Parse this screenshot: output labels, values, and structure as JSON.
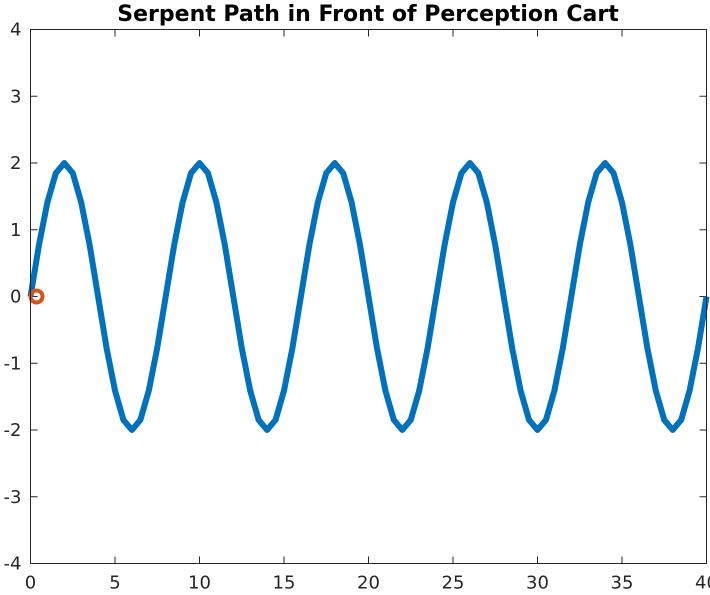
{
  "chart_data": {
    "type": "line",
    "title": "Serpent Path in Front of Perception Cart",
    "xlabel": "",
    "ylabel": "",
    "xlim": [
      0,
      40
    ],
    "ylim": [
      -4,
      4
    ],
    "xticks": [
      0,
      5,
      10,
      15,
      20,
      25,
      30,
      35,
      40
    ],
    "yticks": [
      -4,
      -3,
      -2,
      -1,
      0,
      1,
      2,
      3,
      4
    ],
    "grid": false,
    "colors": {
      "line": "#0072BD",
      "marker": "#D95319",
      "axes": "#262626",
      "title": "#000000"
    },
    "series": [
      {
        "x": [
          0,
          0.5,
          1,
          1.5,
          2,
          2.5,
          3,
          3.5,
          4,
          4.5,
          5,
          5.5,
          6,
          6.5,
          7,
          7.5,
          8,
          8.5,
          9,
          9.5,
          10,
          10.5,
          11,
          11.5,
          12,
          12.5,
          13,
          13.5,
          14,
          14.5,
          15,
          15.5,
          16,
          16.5,
          17,
          17.5,
          18,
          18.5,
          19,
          19.5,
          20,
          20.5,
          21,
          21.5,
          22,
          22.5,
          23,
          23.5,
          24,
          24.5,
          25,
          25.5,
          26,
          26.5,
          27,
          27.5,
          28,
          28.5,
          29,
          29.5,
          30,
          30.5,
          31,
          31.5,
          32,
          32.5,
          33,
          33.5,
          34,
          34.5,
          35,
          35.5,
          36,
          36.5,
          37,
          37.5,
          38,
          38.5,
          39,
          39.5,
          40
        ],
        "y": [
          0,
          0.77,
          1.41,
          1.85,
          2,
          1.85,
          1.41,
          0.77,
          0,
          -0.77,
          -1.41,
          -1.85,
          -2,
          -1.85,
          -1.41,
          -0.77,
          0,
          0.77,
          1.41,
          1.85,
          2,
          1.85,
          1.41,
          0.77,
          0,
          -0.77,
          -1.41,
          -1.85,
          -2,
          -1.85,
          -1.41,
          -0.77,
          0,
          0.77,
          1.41,
          1.85,
          2,
          1.85,
          1.41,
          0.77,
          0,
          -0.77,
          -1.41,
          -1.85,
          -2,
          -1.85,
          -1.41,
          -0.77,
          0,
          0.77,
          1.41,
          1.85,
          2,
          1.85,
          1.41,
          0.77,
          0,
          -0.77,
          -1.41,
          -1.85,
          -2,
          -1.85,
          -1.41,
          -0.77,
          0,
          0.77,
          1.41,
          1.85,
          2,
          1.85,
          1.41,
          0.77,
          0,
          -0.77,
          -1.41,
          -1.85,
          -2,
          -1.85,
          -1.41,
          -0.77,
          0
        ]
      }
    ],
    "markers": [
      {
        "x": 0,
        "y": 0,
        "shape": "circle"
      }
    ]
  }
}
